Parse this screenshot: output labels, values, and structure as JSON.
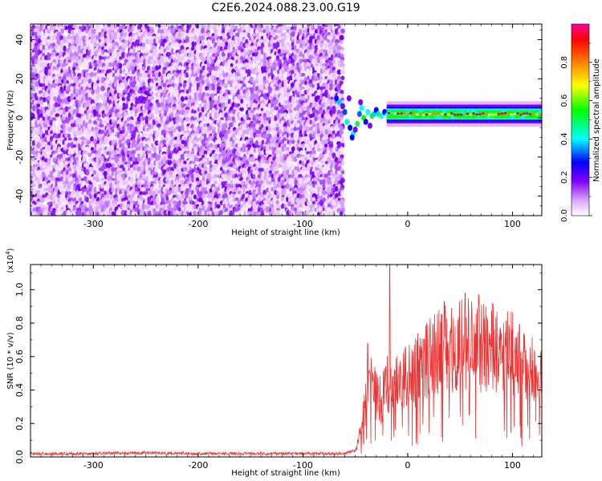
{
  "page": {
    "title": "C2E6.2024.088.23.00.G19"
  },
  "chart_data": [
    {
      "type": "heatmap",
      "title": "C2E6.2024.088.23.00.G19",
      "xlabel": "Height of straight line (km)",
      "ylabel": "Frequency (Hz)",
      "xlim": [
        -360,
        128
      ],
      "ylim": [
        -50,
        48
      ],
      "x_ticks": [
        -300,
        -200,
        -100,
        0,
        100
      ],
      "x_tick_labels": [
        "-300",
        "-200",
        "-100",
        "0",
        "100"
      ],
      "y_ticks": [
        -40,
        -20,
        0,
        20,
        40
      ],
      "y_tick_labels": [
        "-40",
        "-20",
        "0",
        "20",
        "40"
      ],
      "noise_region_x": [
        -360,
        -62
      ],
      "signal_line": {
        "x_start": -20,
        "x_end": 128,
        "frequency_hz": 2,
        "peak_amplitude": 1.0
      },
      "signal_onset_x": -70,
      "colorbar": {
        "label": "Normalized spectral amplitude",
        "range": [
          0.0,
          1.0
        ],
        "ticks": [
          0.0,
          0.2,
          0.4,
          0.6,
          0.8
        ],
        "tick_labels": [
          "0.0",
          "0.2",
          "0.4",
          "0.6",
          "0.8"
        ],
        "colormap": [
          "#ffffff",
          "#e6b3ff",
          "#8000ff",
          "#0000ff",
          "#00ffff",
          "#00ff00",
          "#ffff00",
          "#ff8000",
          "#ff0000",
          "#ff00a0"
        ]
      }
    },
    {
      "type": "line",
      "xlabel": "Height of straight line (km)",
      "ylabel": "SNR (10 * v/v)",
      "y_scale_label": "(x10",
      "y_scale_exp": "4",
      "y_scale_close": ")",
      "xlim": [
        -360,
        128
      ],
      "ylim": [
        0,
        1.15
      ],
      "x_ticks": [
        -300,
        -200,
        -100,
        0,
        100
      ],
      "x_tick_labels": [
        "-300",
        "-200",
        "-100",
        "0",
        "100"
      ],
      "y_ticks": [
        0.0,
        0.2,
        0.4,
        0.6,
        0.8,
        1.0
      ],
      "y_tick_labels": [
        "0.0",
        "0.2",
        "0.4",
        "0.6",
        "0.8",
        "1.0"
      ],
      "series": [
        {
          "color": "#ee3333",
          "envelope": {
            "x": [
              -360,
              -300,
              -250,
              -200,
              -100,
              -60,
              -50,
              -45,
              -40,
              -35,
              -30,
              -25,
              -20,
              -15,
              -10,
              0,
              10,
              20,
              30,
              40,
              50,
              60,
              70,
              80,
              90,
              100,
              110,
              120,
              128
            ],
            "y": [
              0.02,
              0.02,
              0.025,
              0.02,
              0.02,
              0.02,
              0.04,
              0.15,
              0.35,
              0.45,
              0.4,
              0.35,
              0.45,
              0.5,
              0.45,
              0.5,
              0.55,
              0.62,
              0.66,
              0.68,
              0.7,
              0.72,
              0.7,
              0.7,
              0.68,
              0.65,
              0.6,
              0.55,
              0.52
            ]
          },
          "peaks": [
            {
              "x": -17,
              "y": 1.15
            },
            {
              "x": -38,
              "y": 0.68
            },
            {
              "x": 55,
              "y": 0.98
            },
            {
              "x": 68,
              "y": 0.97
            },
            {
              "x": 35,
              "y": 0.93
            }
          ]
        }
      ]
    }
  ]
}
